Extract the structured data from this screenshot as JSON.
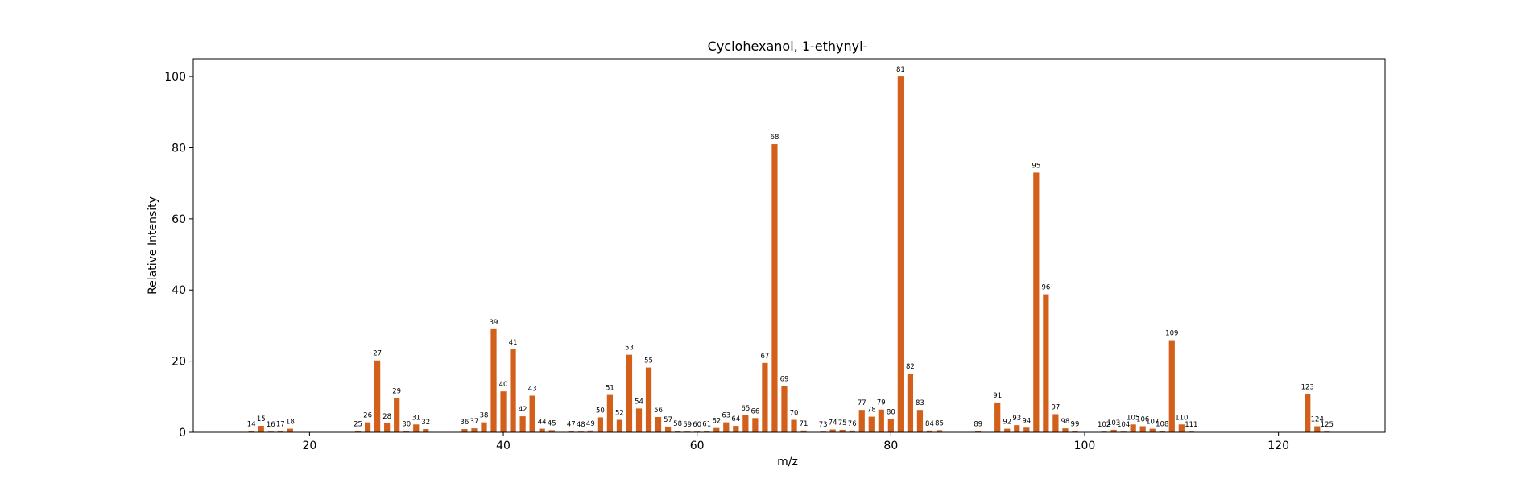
{
  "chart_data": {
    "type": "bar",
    "title": "Cyclohexanol, 1-ethynyl-",
    "xlabel": "m/z",
    "ylabel": "Relative Intensity",
    "xlim": [
      8,
      131
    ],
    "ylim": [
      0,
      105
    ],
    "xticks": [
      20,
      40,
      60,
      80,
      100,
      120
    ],
    "yticks": [
      0,
      20,
      40,
      60,
      80,
      100
    ],
    "bar_color": "#d2601a",
    "grid": false,
    "x": [
      14,
      15,
      16,
      17,
      18,
      25,
      26,
      27,
      28,
      29,
      30,
      31,
      32,
      36,
      37,
      38,
      39,
      40,
      41,
      42,
      43,
      44,
      45,
      47,
      48,
      49,
      50,
      51,
      52,
      53,
      54,
      55,
      56,
      57,
      58,
      59,
      60,
      61,
      62,
      63,
      64,
      65,
      66,
      67,
      68,
      69,
      70,
      71,
      73,
      74,
      75,
      76,
      77,
      78,
      79,
      80,
      81,
      82,
      83,
      84,
      85,
      89,
      91,
      92,
      93,
      94,
      95,
      96,
      97,
      98,
      99,
      102,
      103,
      104,
      105,
      106,
      107,
      108,
      109,
      110,
      111,
      123,
      124,
      125
    ],
    "values": [
      0.3,
      1.8,
      0.2,
      0.3,
      1.0,
      0.3,
      2.8,
      20.2,
      2.5,
      9.6,
      0.3,
      2.2,
      0.9,
      0.9,
      1.1,
      2.8,
      29.0,
      11.5,
      23.3,
      4.5,
      10.3,
      1.0,
      0.6,
      0.3,
      0.2,
      0.5,
      4.2,
      10.5,
      3.5,
      21.8,
      6.7,
      18.2,
      4.3,
      1.6,
      0.4,
      0.2,
      0.2,
      0.3,
      1.2,
      2.8,
      1.8,
      4.8,
      4.0,
      19.5,
      81.0,
      13.0,
      3.5,
      0.5,
      0.2,
      0.8,
      0.7,
      0.5,
      6.3,
      4.4,
      6.4,
      3.7,
      100.0,
      16.5,
      6.3,
      0.5,
      0.6,
      0.3,
      8.4,
      1.0,
      2.0,
      1.3,
      73.0,
      38.8,
      5.1,
      1.1,
      0.3,
      0.2,
      0.7,
      0.2,
      2.2,
      1.7,
      1.0,
      0.3,
      25.9,
      2.2,
      0.2,
      10.8,
      1.7,
      0.2
    ]
  }
}
